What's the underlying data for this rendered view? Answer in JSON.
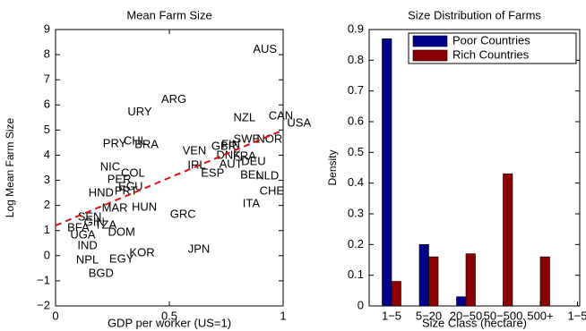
{
  "chart_data": [
    {
      "type": "scatter",
      "title": "Mean Farm Size",
      "xlabel": "GDP per worker (US=1)",
      "ylabel": "Log Mean Farm Size",
      "labels": [
        "AUS",
        "ARG",
        "URY",
        "NZL",
        "CAN",
        "USA",
        "SWE",
        "NOR",
        "CHL",
        "PRY",
        "BRA",
        "VEN",
        "GBR",
        "FIN",
        "DNK",
        "FRA",
        "DEU",
        "IRL",
        "AUT",
        "NIC",
        "COL",
        "ESP",
        "BEL",
        "NLD",
        "PER",
        "ECU",
        "CHE",
        "HND",
        "PRT",
        "ITA",
        "MAR",
        "HUN",
        "GRC",
        "SEN",
        "GIN",
        "TZA",
        "BFA",
        "UGA",
        "DOM",
        "IND",
        "KOR",
        "JPN",
        "NPL",
        "EGY",
        "BGD"
      ],
      "x": [
        0.92,
        0.52,
        0.37,
        0.83,
        0.99,
        1.07,
        0.84,
        0.94,
        0.35,
        0.26,
        0.4,
        0.61,
        0.74,
        0.77,
        0.76,
        0.83,
        0.87,
        0.62,
        0.77,
        0.24,
        0.34,
        0.69,
        0.86,
        0.93,
        0.28,
        0.33,
        0.95,
        0.2,
        0.31,
        0.86,
        0.26,
        0.39,
        0.56,
        0.15,
        0.17,
        0.22,
        0.1,
        0.12,
        0.29,
        0.14,
        0.38,
        0.63,
        0.14,
        0.29,
        0.2
      ],
      "values": [
        8.2,
        6.2,
        5.7,
        5.47,
        5.55,
        5.26,
        4.62,
        4.62,
        4.55,
        4.44,
        4.41,
        4.16,
        4.33,
        4.4,
        3.98,
        3.94,
        3.73,
        3.59,
        3.62,
        3.52,
        3.27,
        3.27,
        3.2,
        3.16,
        3.02,
        2.73,
        2.55,
        2.48,
        2.55,
        2.06,
        1.88,
        1.91,
        1.63,
        1.52,
        1.31,
        1.2,
        1.1,
        0.81,
        0.92,
        0.38,
        0.1,
        0.24,
        -0.19,
        -0.15,
        -0.72
      ],
      "fit": {
        "x": [
          0,
          1
        ],
        "values": [
          1.2,
          5.0
        ],
        "color": "#e01010"
      },
      "xlim": [
        0,
        1
      ],
      "xticks": [
        0,
        0.5,
        1
      ],
      "ylim": [
        -2,
        9
      ],
      "yticks": [
        {
          "value": -2,
          "label": "−2"
        },
        {
          "value": -1,
          "label": "−1"
        },
        0,
        1,
        2,
        3,
        4,
        5,
        6,
        7,
        8,
        9
      ]
    },
    {
      "type": "bar",
      "title": "Size Distribution of Farms",
      "xlabel": "Size Class (hectare)",
      "ylabel": "Density",
      "categories": [
        "1−5",
        "5−20",
        "20−50",
        "50−500",
        "500+",
        "1−5"
      ],
      "series": [
        {
          "name": "Poor Countries",
          "color": "#00008b",
          "values": [
            0.87,
            0.2,
            0.03,
            0,
            0,
            null
          ]
        },
        {
          "name": "Rich Countries",
          "color": "#8b0000",
          "values": [
            0.08,
            0.16,
            0.17,
            0.43,
            0.16,
            null
          ]
        }
      ],
      "ylim": [
        0,
        0.9
      ],
      "yticks": [
        0,
        0.1,
        0.2,
        0.3,
        0.4,
        0.5,
        0.6,
        0.7,
        0.8,
        0.9
      ],
      "legend": "upper right"
    }
  ]
}
